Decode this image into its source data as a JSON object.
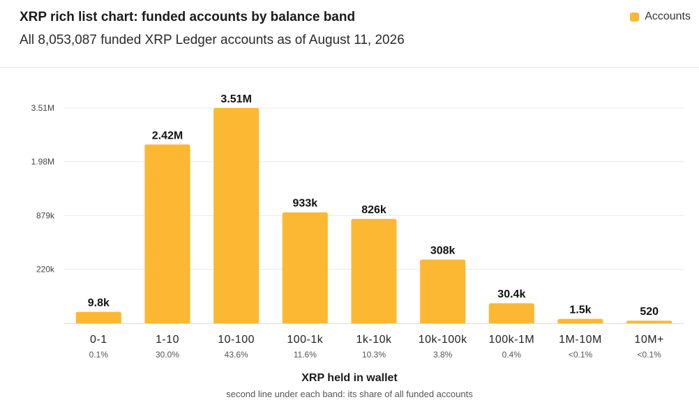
{
  "header": {
    "title": "XRP rich list chart: funded accounts by balance band",
    "subtitle": "All 8,053,087 funded XRP Ledger accounts as of August 11, 2026"
  },
  "legend": {
    "label": "Accounts",
    "color": "#FDB833"
  },
  "footnote": "second line under each band: its share of all funded accounts",
  "chart_data": {
    "type": "bar",
    "xlabel": "XRP held in wallet",
    "ylabel": "",
    "y_scale": "sqrt",
    "ylim": [
      0,
      3510000
    ],
    "grid": true,
    "legend_position": "top-right",
    "bar_color": "#FDB833",
    "y_ticks": [
      {
        "value": 220000,
        "label": "220k"
      },
      {
        "value": 879000,
        "label": "879k"
      },
      {
        "value": 1980000,
        "label": "1.98M"
      },
      {
        "value": 3510000,
        "label": "3.51M"
      }
    ],
    "categories": [
      "0-1",
      "1-10",
      "10-100",
      "100-1k",
      "1k-10k",
      "10k-100k",
      "100k-1M",
      "1M-10M",
      "10M+"
    ],
    "shares": [
      "0.1%",
      "30.0%",
      "43.6%",
      "11.6%",
      "10.3%",
      "3.8%",
      "0.4%",
      "<0.1%",
      "<0.1%"
    ],
    "series": [
      {
        "name": "Accounts",
        "values": [
          9800,
          2420000,
          3510000,
          933000,
          826000,
          308000,
          30400,
          1500,
          520
        ],
        "labels": [
          "9.8k",
          "2.42M",
          "3.51M",
          "933k",
          "826k",
          "308k",
          "30.4k",
          "1.5k",
          "520"
        ]
      }
    ]
  }
}
